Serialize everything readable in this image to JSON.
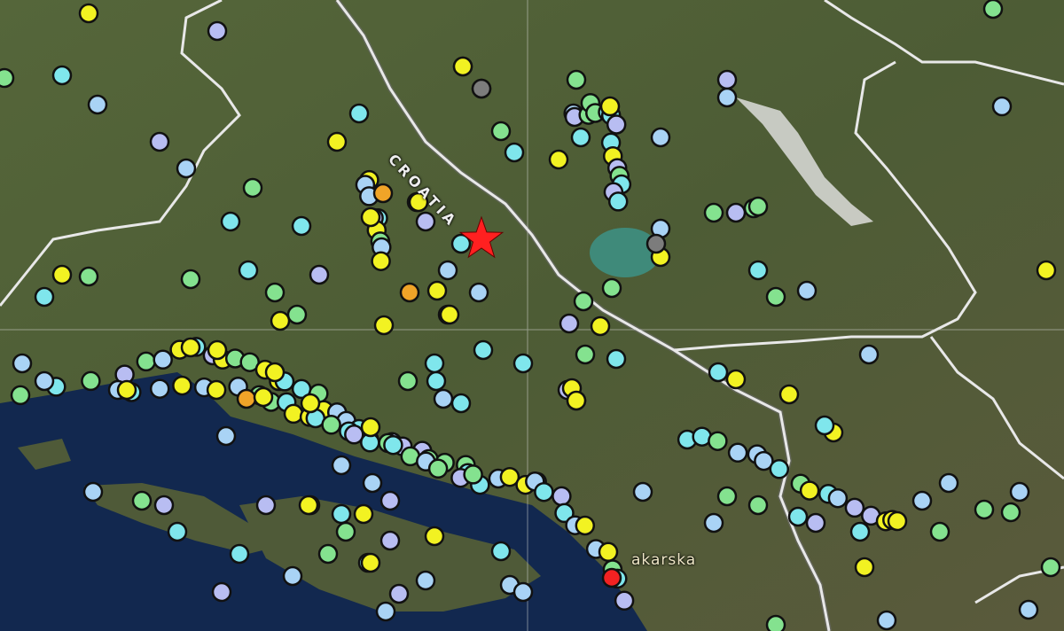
{
  "map": {
    "labels": {
      "country": "CROATIA",
      "town": "akarska"
    },
    "epicenter": {
      "icon": "star-icon",
      "color": "#ff2020"
    },
    "marker_colors": {
      "light_blue": "#a9d3f5",
      "cyan": "#7fe6ec",
      "green": "#84e28f",
      "yellow": "#f2f222",
      "orange": "#f0a428",
      "red": "#f22222",
      "lavender": "#b8bdf2",
      "gray": "#7c7c7c"
    },
    "colors": {
      "land": "#4b5a34",
      "sea": "#10264e",
      "border": "#e8e8e8"
    }
  }
}
